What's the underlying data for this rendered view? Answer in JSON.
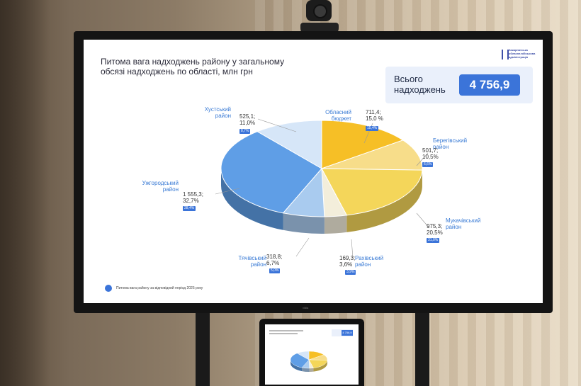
{
  "slide": {
    "title_line1": "Питома вага надходжень району у загальному",
    "title_line2": "обсязі надходжень по області, млн грн",
    "logo_text": "Закарпатська обласна військова адміністрація",
    "total_label": "Всього надходжень",
    "total_value": "4 756,9",
    "legend_text": "Питома вага району за відповідний період 2025 року",
    "monitor_brand": "vidia"
  },
  "chart_data": {
    "type": "pie",
    "title": "Питома вага надходжень району у загальному обсязі надходжень по області, млн грн",
    "slices": [
      {
        "name_line1": "Обласний",
        "name_line2": "бюджет",
        "amount": "711,4;",
        "share": "15,0 %",
        "badge": "15,4%",
        "value": 711.4,
        "percent": 15.0,
        "color": "#f6bf26"
      },
      {
        "name_line1": "Берегівський",
        "name_line2": "район",
        "amount": "501,7;",
        "share": "10,5%",
        "badge": "6,6%",
        "value": 501.7,
        "percent": 10.5,
        "color": "#f7dd8a"
      },
      {
        "name_line1": "Мукачівський",
        "name_line2": "район",
        "amount": "975,3;",
        "share": "20,5%",
        "badge": "31,0%",
        "value": 975.3,
        "percent": 20.5,
        "color": "#f4d65a"
      },
      {
        "name_line1": "Рахівський",
        "name_line2": "район",
        "amount": "169,3;",
        "share": "3,6%",
        "badge": "3,9%",
        "value": 169.3,
        "percent": 3.6,
        "color": "#f3eedb"
      },
      {
        "name_line1": "Тячівський",
        "name_line2": "район",
        "amount": "318,8;",
        "share": "6,7%",
        "badge": "5,0%",
        "value": 318.8,
        "percent": 6.7,
        "color": "#a9cbef"
      },
      {
        "name_line1": "Ужгородський",
        "name_line2": "район",
        "amount": "1 555,3;",
        "share": "32,7%",
        "badge": "28,4%",
        "value": 1555.3,
        "percent": 32.7,
        "color": "#5f9ee6"
      },
      {
        "name_line1": "Хустський",
        "name_line2": "район",
        "amount": "525,1;",
        "share": "11,0%",
        "badge": "8,7%",
        "value": 525.1,
        "percent": 11.0,
        "color": "#d6e6f8"
      }
    ]
  },
  "tablet": {
    "total_value": "4 756,9"
  }
}
